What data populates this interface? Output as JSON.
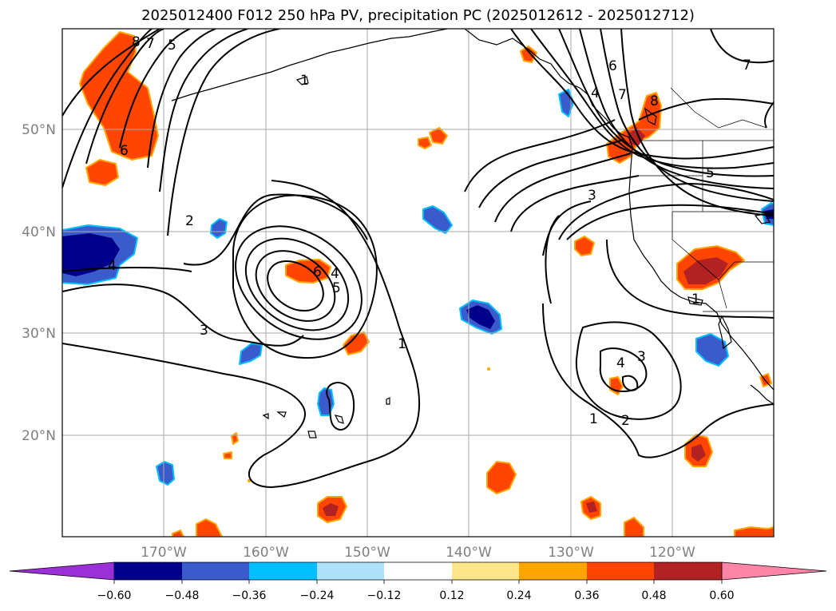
{
  "title": "2025012400 F012 250 hPa PV, precipitation PC (2025012612 - 2025012712)",
  "lon_labels": [
    "170°W",
    "160°W",
    "150°W",
    "140°W",
    "130°W",
    "120°W"
  ],
  "lat_labels": [
    "50°N",
    "40°N",
    "30°N",
    "20°N"
  ],
  "contour_labels": [
    "8",
    "7",
    "5",
    "6",
    "2",
    "3",
    "4",
    "4",
    "5",
    "1",
    "1",
    "2",
    "4",
    "3",
    "3",
    "1",
    "6",
    "7",
    "8",
    "4",
    "5",
    "7",
    "1",
    "6"
  ],
  "colorbar": {
    "ticks": [
      "−0.60",
      "−0.48",
      "−0.36",
      "−0.24",
      "−0.12",
      "0.12",
      "0.24",
      "0.36",
      "0.48",
      "0.60"
    ],
    "colors": [
      "#9b30d9",
      "#00008b",
      "#3a5bcc",
      "#00bfff",
      "#aee2fb",
      "#ffffff",
      "#fde68a",
      "#ffa500",
      "#ff4500",
      "#b22222",
      "#ff85a8"
    ]
  }
}
